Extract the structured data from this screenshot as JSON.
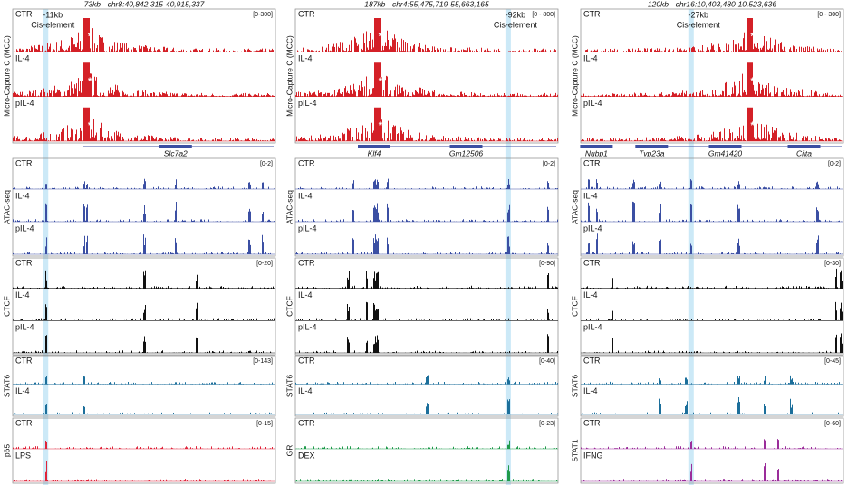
{
  "panels": [
    {
      "header": "73kb - chr8:40,842,315-40,915,337",
      "annotation": {
        "distance": "-11kb",
        "label": "Cis-element"
      },
      "viewpoint_mark": "*",
      "genes": [
        "Slc7a2"
      ],
      "groups": [
        {
          "label": "Micro-Capture C (MCC)",
          "range": "[0-300]",
          "color": "#d42027",
          "tracks": [
            "CTR",
            "IL-4",
            "pIL-4"
          ]
        },
        {
          "label": "ATAC-seq",
          "range": "[0-2]",
          "color": "#3b4fa3",
          "tracks": [
            "CTR",
            "IL-4",
            "pIL-4"
          ]
        },
        {
          "label": "CTCF",
          "range": "[0-20]",
          "color": "#111111",
          "tracks": [
            "CTR",
            "IL-4",
            "pIL-4"
          ]
        },
        {
          "label": "STAT6",
          "range": "[0-143]",
          "color": "#1c6f9b",
          "tracks": [
            "CTR",
            "IL-4"
          ]
        },
        {
          "label": "p65",
          "range": "[0-15]",
          "color": "#e0243a",
          "tracks": [
            "CTR",
            "LPS"
          ]
        }
      ]
    },
    {
      "header": "187kb - chr4:55,475,719-55,663,165",
      "annotation": {
        "distance": "-92kb",
        "label": "Cis-element"
      },
      "viewpoint_mark": "*",
      "genes": [
        "Klf4",
        "Gm12506"
      ],
      "groups": [
        {
          "label": "Micro-Capture C (MCC)",
          "range": "[0 - 800]",
          "color": "#d42027",
          "tracks": [
            "CTR",
            "IL-4",
            "pIL-4"
          ]
        },
        {
          "label": "ATAC-seq",
          "range": "[0-2]",
          "color": "#3b4fa3",
          "tracks": [
            "CTR",
            "IL-4",
            "pIL-4"
          ]
        },
        {
          "label": "CTCF",
          "range": "[0-90]",
          "color": "#111111",
          "tracks": [
            "CTR",
            "IL-4",
            "pIL-4"
          ]
        },
        {
          "label": "STAT6",
          "range": "[0-40]",
          "color": "#1c6f9b",
          "tracks": [
            "CTR",
            "IL-4"
          ]
        },
        {
          "label": "GR",
          "range": "[0-23]",
          "color": "#1f9a4a",
          "tracks": [
            "CTR",
            "DEX"
          ]
        }
      ]
    },
    {
      "header": "120kb - chr16:10,403,480-10,523,636",
      "annotation": {
        "distance": "-27kb",
        "label": "Cis-element"
      },
      "viewpoint_mark": "*",
      "genes": [
        "Nubp1",
        "Tvp23a",
        "Gm41420",
        "Ciita"
      ],
      "groups": [
        {
          "label": "Micro-Capture C (MCC)",
          "range": "[0 - 300]",
          "color": "#d42027",
          "tracks": [
            "CTR",
            "IL-4",
            "pIL-4"
          ]
        },
        {
          "label": "ATAC-seq",
          "range": "[0-2]",
          "color": "#3b4fa3",
          "tracks": [
            "CTR",
            "IL-4",
            "pIL-4"
          ]
        },
        {
          "label": "CTCF",
          "range": "[0-30]",
          "color": "#111111",
          "tracks": [
            "CTR",
            "IL-4",
            "pIL-4"
          ]
        },
        {
          "label": "STAT6",
          "range": "[0-45]",
          "color": "#1c6f9b",
          "tracks": [
            "CTR",
            "IL-4"
          ]
        },
        {
          "label": "STAT1",
          "range": "[0-60]",
          "color": "#9b2d9a",
          "tracks": [
            "CTR",
            "IFNG"
          ]
        }
      ]
    }
  ]
}
